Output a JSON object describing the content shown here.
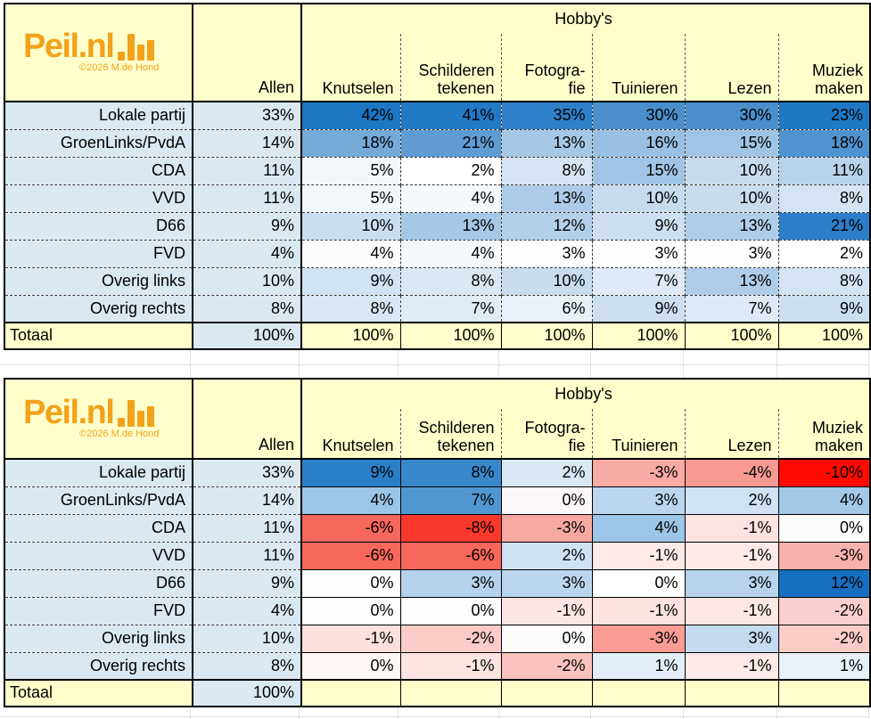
{
  "logo": {
    "name": "Peil.nl",
    "copyright": "©2026 M.de Hond",
    "color": "#F2A21B"
  },
  "labels": {
    "total": "Totaal",
    "group_header": "Hobby's",
    "allen": "Allen"
  },
  "columns": {
    "hobbies_display": [
      "Knutselen",
      "Schilderen\ntekenen",
      "Fotogra-\nfie",
      "Tuinieren",
      "Lezen",
      "Muziek\nmaken"
    ]
  },
  "colors": {
    "header_yellow": "#FFFFCC",
    "label_blue": "#DAE8F2",
    "logo_orange": "#F2A21B",
    "scale_blue_max": "#1B76C4",
    "scale_red_max": "#FE0A00",
    "scale_mid": "#FFFFFF",
    "border": "#000000",
    "gridline": "#E3E3E3"
  },
  "chart_data": [
    {
      "type": "heatmap",
      "unit": "%",
      "group_header": "Hobby's",
      "columns": [
        "Allen",
        "Knutselen",
        "Schilderen tekenen",
        "Fotografie",
        "Tuinieren",
        "Lezen",
        "Muziek maken"
      ],
      "rows": [
        "Lokale partij",
        "GroenLinks/PvdA",
        "CDA",
        "VVD",
        "D66",
        "FVD",
        "Overig links",
        "Overig rechts"
      ],
      "values": [
        [
          33,
          42,
          41,
          35,
          30,
          30,
          23
        ],
        [
          14,
          18,
          21,
          13,
          16,
          15,
          18
        ],
        [
          11,
          5,
          2,
          8,
          15,
          10,
          11
        ],
        [
          11,
          5,
          4,
          13,
          10,
          10,
          8
        ],
        [
          9,
          10,
          13,
          12,
          9,
          13,
          21
        ],
        [
          4,
          4,
          4,
          3,
          3,
          3,
          2
        ],
        [
          10,
          9,
          8,
          10,
          7,
          13,
          8
        ],
        [
          8,
          8,
          7,
          6,
          9,
          7,
          9
        ]
      ],
      "totals": [
        100,
        100,
        100,
        100,
        100,
        100,
        100
      ],
      "color_scale": "white-to-blue, scaled per hobby column",
      "legend_position": "none"
    },
    {
      "type": "heatmap",
      "unit": "%",
      "group_header": "Hobby's",
      "columns": [
        "Allen",
        "Knutselen",
        "Schilderen tekenen",
        "Fotografie",
        "Tuinieren",
        "Lezen",
        "Muziek maken"
      ],
      "rows": [
        "Lokale partij",
        "GroenLinks/PvdA",
        "CDA",
        "VVD",
        "D66",
        "FVD",
        "Overig links",
        "Overig rechts"
      ],
      "values": [
        [
          33,
          9,
          8,
          2,
          -3,
          -4,
          -10
        ],
        [
          14,
          4,
          7,
          0,
          3,
          2,
          4
        ],
        [
          11,
          -6,
          -8,
          -3,
          4,
          -1,
          0
        ],
        [
          11,
          -6,
          -6,
          2,
          -1,
          -1,
          -3
        ],
        [
          9,
          0,
          3,
          3,
          0,
          3,
          12
        ],
        [
          4,
          0,
          0,
          -1,
          -1,
          -1,
          -2
        ],
        [
          10,
          -1,
          -2,
          0,
          -3,
          3,
          -2
        ],
        [
          8,
          0,
          -1,
          -2,
          1,
          -1,
          1
        ]
      ],
      "totals": [
        100,
        null,
        null,
        null,
        null,
        null,
        null
      ],
      "color_scale": "diverging red-white-blue (negative=red, positive=blue)",
      "legend_position": "none"
    }
  ],
  "fills": {
    "table1": [
      [
        "#1B76C4",
        "#2279C5",
        "#2E80C8",
        "#4A8FCB",
        "#4A8FCB",
        "#1E78C5"
      ],
      [
        "#74A9D8",
        "#5F9CD4",
        "#A5C8E6",
        "#99C0E3",
        "#A0C4E5",
        "#4F93D0"
      ],
      [
        "#F2F7FB",
        "#FFFFFF",
        "#D6E5F3",
        "#A0C4E5",
        "#C8DCEE",
        "#B7D3EB"
      ],
      [
        "#F2F7FB",
        "#F5F9FC",
        "#ABCBE8",
        "#C6DBEE",
        "#C8DCEE",
        "#D5E4F3"
      ],
      [
        "#CBDEF0",
        "#A5C8E6",
        "#B3D0EA",
        "#CDDFF0",
        "#AECDE9",
        "#2B7EC7"
      ],
      [
        "#FAFCFE",
        "#F5F9FC",
        "#FDFDFE",
        "#FDFEFE",
        "#FDFEFE",
        "#FFFFFF"
      ],
      [
        "#D2E3F2",
        "#DAE8F4",
        "#C8DCEE",
        "#DFEAF6",
        "#AECDE9",
        "#D5E4F3"
      ],
      [
        "#D8E7F4",
        "#E0EBF6",
        "#E8F0F8",
        "#CDDFF0",
        "#DFEAF6",
        "#CCDFF0"
      ]
    ],
    "table2": [
      [
        "#2A7FC8",
        "#3A88CC",
        "#D8E8F5",
        "#F8ABA4",
        "#F79A92",
        "#FE0A00"
      ],
      [
        "#9DC5E7",
        "#5097D1",
        "#FEF9F8",
        "#BAD5EE",
        "#D0E2F3",
        "#A3C8E8"
      ],
      [
        "#F8675C",
        "#FA392C",
        "#F7A8A1",
        "#9DC5E7",
        "#FDE3E1",
        "#FEFCFB"
      ],
      [
        "#F8675C",
        "#F8675C",
        "#CFE1F3",
        "#FDE9E7",
        "#FDE9E7",
        "#F8B1AB"
      ],
      [
        "#FDFEFF",
        "#B5D2EC",
        "#BAD5EE",
        "#FFFFFF",
        "#B8D4ED",
        "#176FC1"
      ],
      [
        "#FEFDFD",
        "#FEFCFC",
        "#FDE5E3",
        "#FCE3E0",
        "#FDE7E4",
        "#FBCFCB"
      ],
      [
        "#FDE0DD",
        "#FACCC7",
        "#FEFCFB",
        "#F89C94",
        "#C3DAEF",
        "#FACCC7"
      ],
      [
        "#FEF7F6",
        "#FDE4E1",
        "#F9C2BD",
        "#E3EEF8",
        "#FDE9E6",
        "#E8F0F8"
      ]
    ]
  }
}
